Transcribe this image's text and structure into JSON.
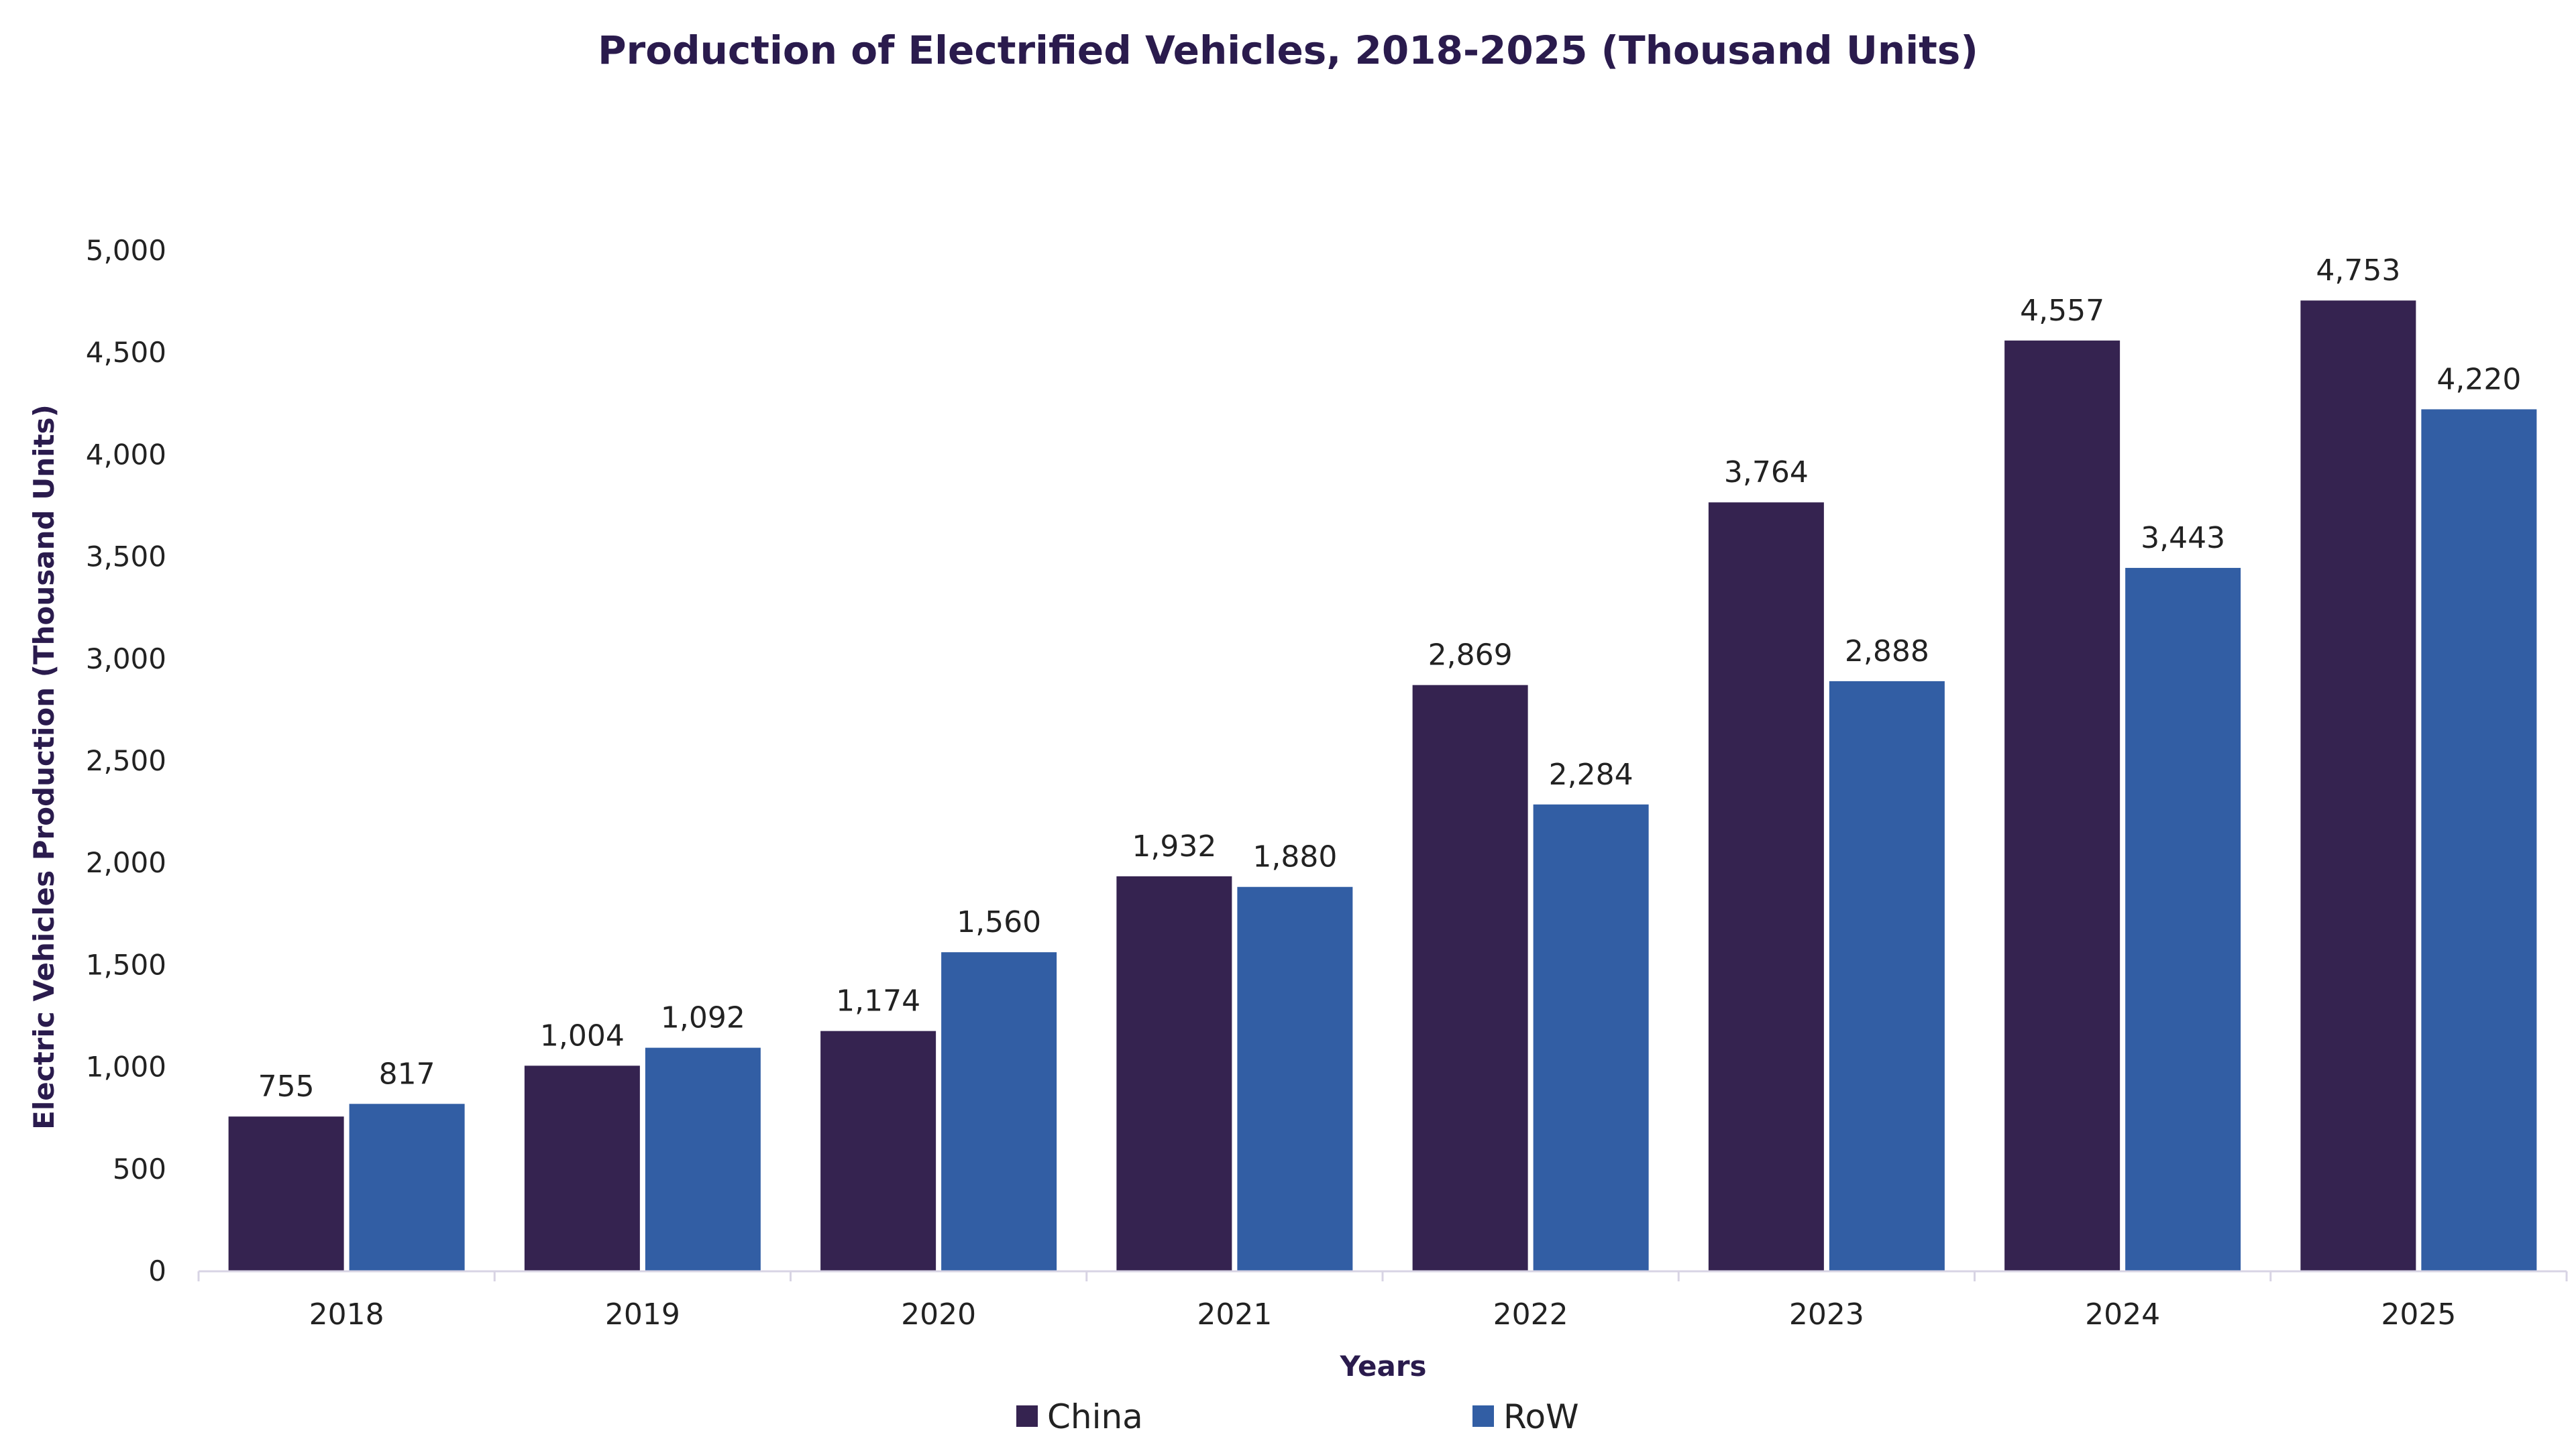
{
  "chart_data": {
    "type": "bar",
    "title": "Production of Electrified Vehicles, 2018-2025 (Thousand Units)",
    "xlabel": "Years",
    "ylabel": "Electric Vehicles Production (Thousand Units)",
    "categories": [
      "2018",
      "2019",
      "2020",
      "2021",
      "2022",
      "2023",
      "2024",
      "2025"
    ],
    "series": [
      {
        "name": "China",
        "values": [
          755,
          1004,
          1174,
          1932,
          2869,
          3764,
          4557,
          4753
        ],
        "labels": [
          "755",
          "1,004",
          "1,174",
          "1,932",
          "2,869",
          "3,764",
          "4,557",
          "4,753"
        ]
      },
      {
        "name": "RoW",
        "values": [
          817,
          1092,
          1560,
          1880,
          2284,
          2888,
          3443,
          4220
        ],
        "labels": [
          "817",
          "1,092",
          "1,560",
          "1,880",
          "2,284",
          "2,888",
          "3,443",
          "4,220"
        ]
      }
    ],
    "ylim": [
      0,
      5000
    ],
    "yticks": [
      0,
      500,
      1000,
      1500,
      2000,
      2500,
      3000,
      3500,
      4000,
      4500,
      5000
    ],
    "ytick_labels": [
      "0",
      "500",
      "1,000",
      "1,500",
      "2,000",
      "2,500",
      "3,000",
      "3,500",
      "4,000",
      "4,500",
      "5,000"
    ],
    "grid": false,
    "legend_position": "bottom-center",
    "colors": {
      "China": "#352350",
      "RoW": "#325ea4",
      "title": "#2a1b4d",
      "axis": "#d8d4e4"
    }
  }
}
